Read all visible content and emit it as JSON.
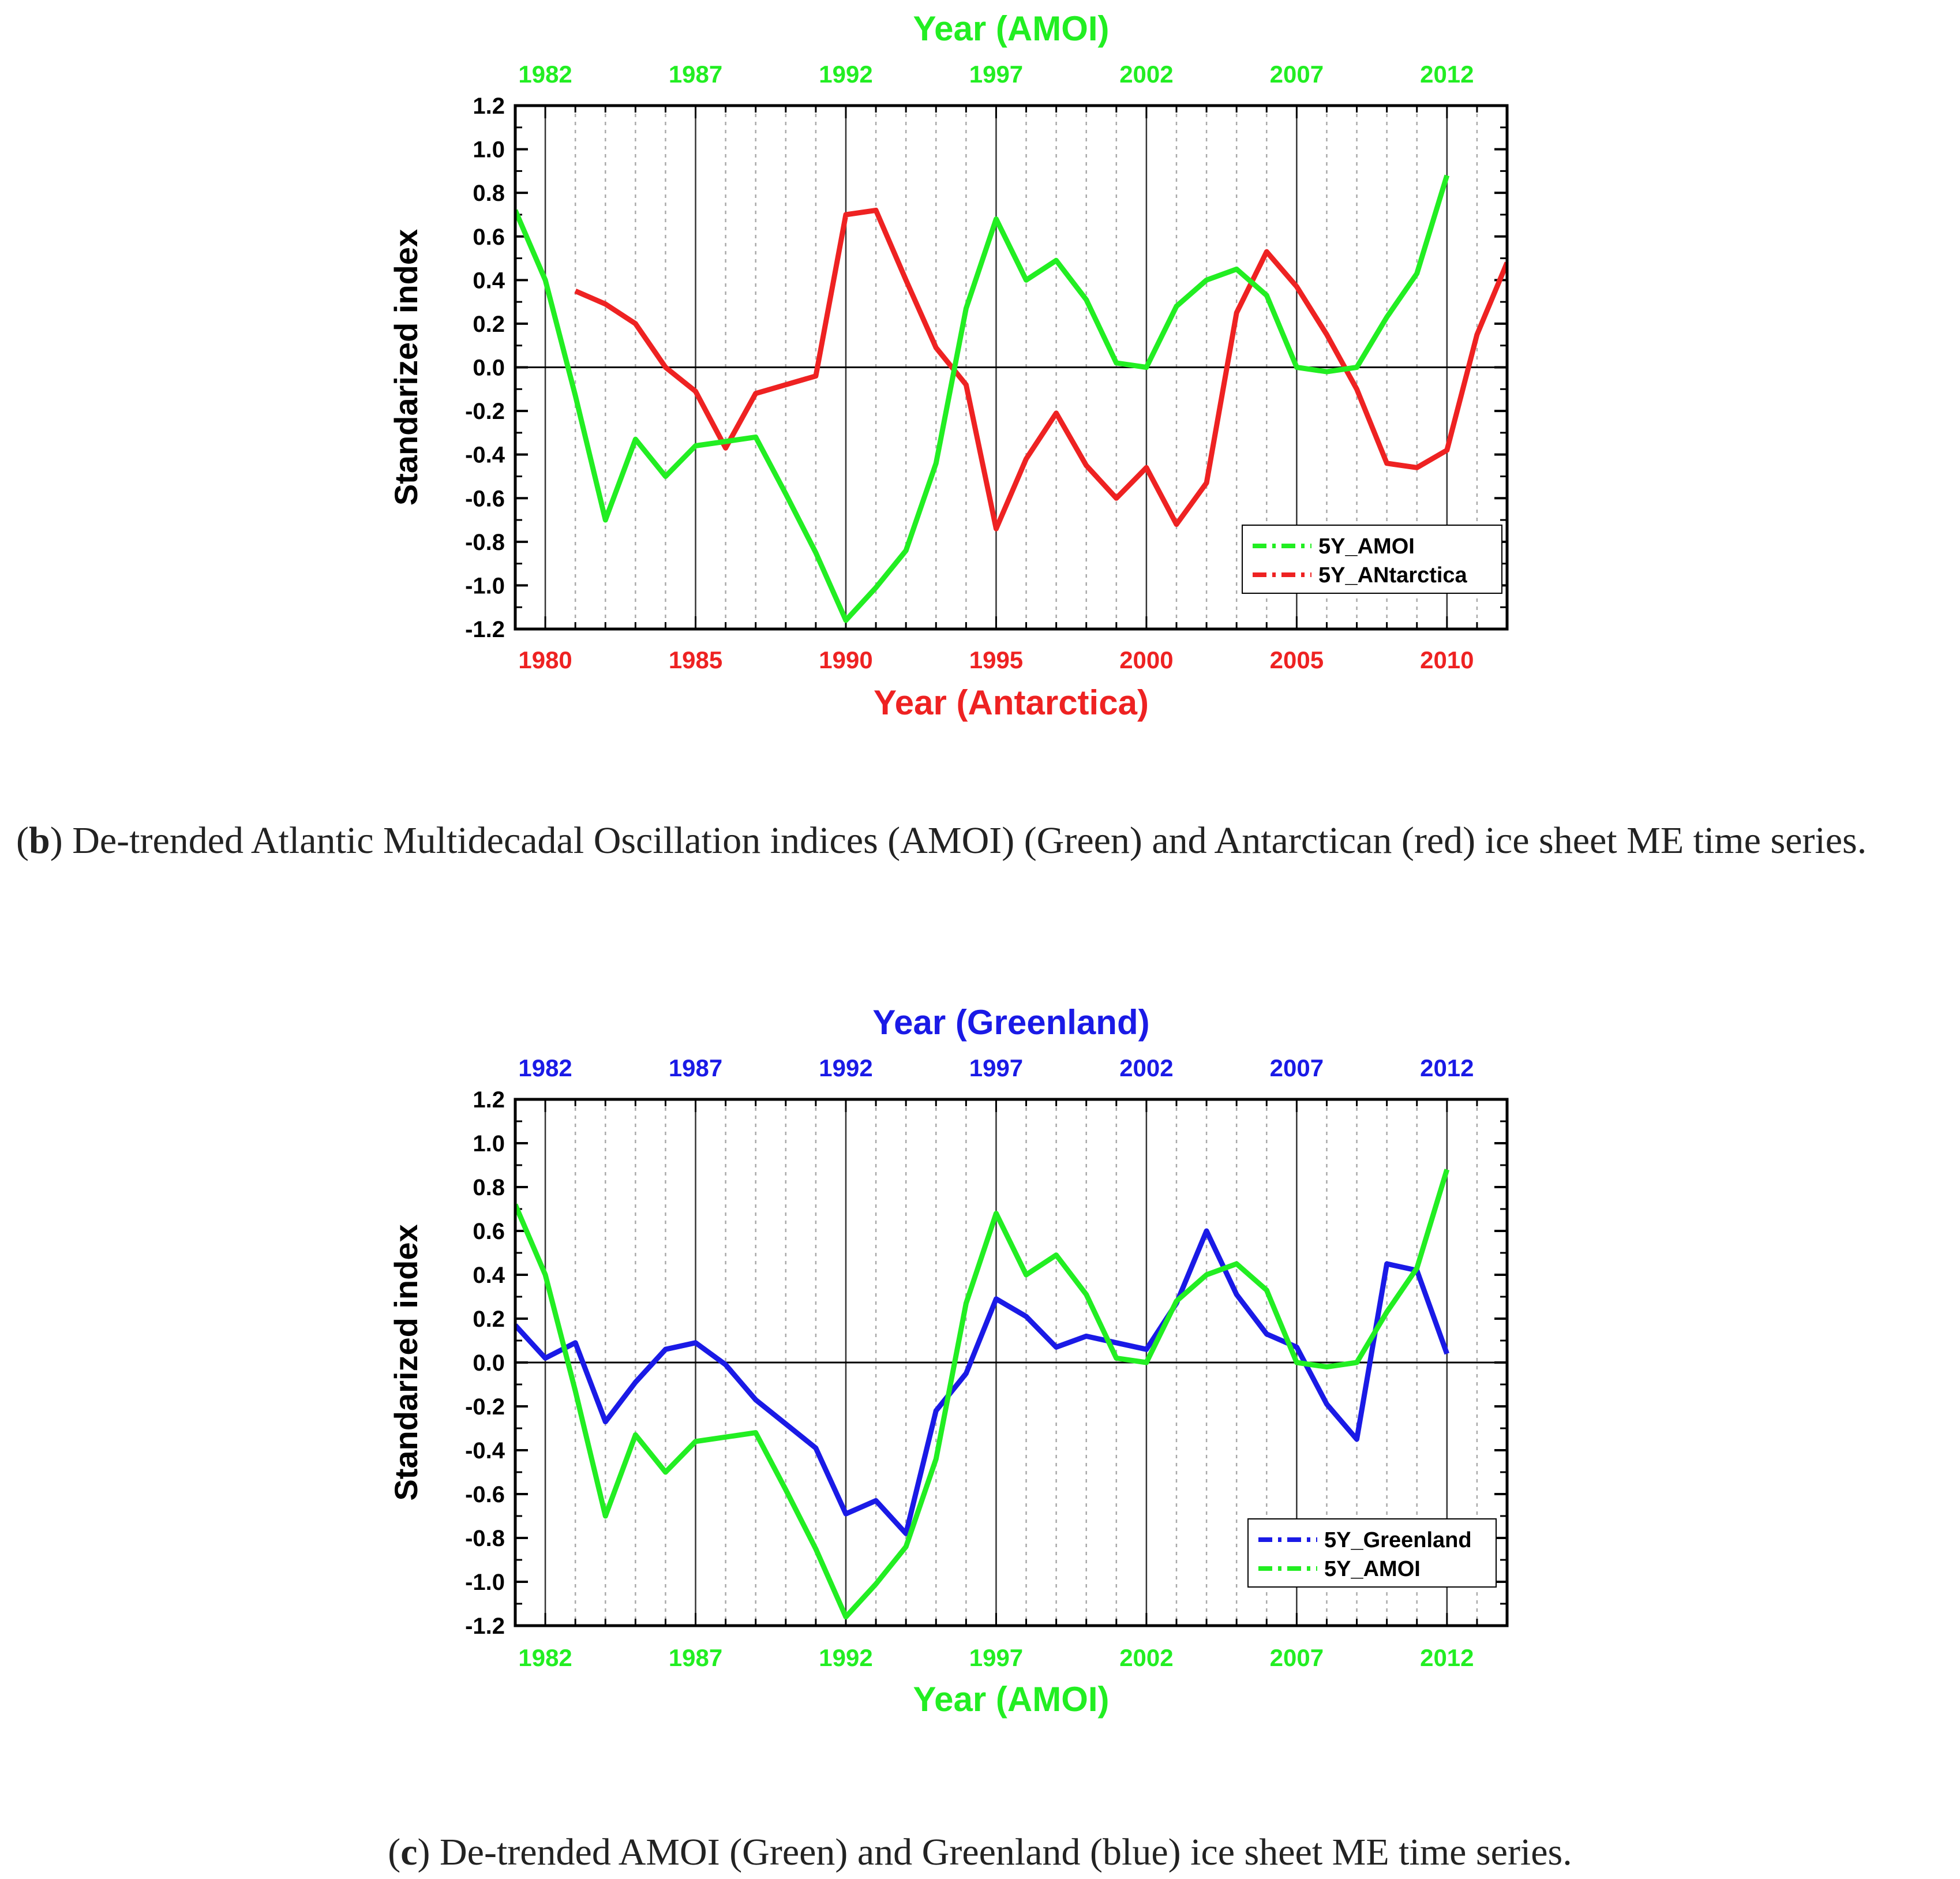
{
  "colors": {
    "green": "#22ee22",
    "red": "#ee2222",
    "blue": "#1a1ae6",
    "axis": "#000000"
  },
  "captions": {
    "b": {
      "letter": "b",
      "text": "De-trended Atlantic Multidecadal Oscillation indices (AMOI) (Green) and Antarctican (red) ice sheet ME time series."
    },
    "c": {
      "letter": "c",
      "text": "De-trended AMOI (Green) and Greenland (blue) ice sheet ME time series."
    }
  },
  "chart_data": [
    {
      "type": "line",
      "id": "b",
      "ylabel": "Standarized index",
      "ylim": [
        -1.2,
        1.2
      ],
      "yticks": [
        "-1.2",
        "-1.0",
        "-0.8",
        "-0.6",
        "-0.4",
        "-0.2",
        "0.0",
        "0.2",
        "0.4",
        "0.6",
        "0.8",
        "1.0",
        "1.2"
      ],
      "bottom_axis": {
        "label": "Year (Antarctica)",
        "color": "#ee2222",
        "range": [
          1979,
          2012
        ],
        "ticks": [
          "1980",
          "1985",
          "1990",
          "1995",
          "2000",
          "2005",
          "2010"
        ]
      },
      "top_axis": {
        "label": "Year (AMOI)",
        "color": "#22ee22",
        "range": [
          1981,
          2014
        ],
        "ticks": [
          "1982",
          "1987",
          "1992",
          "1997",
          "2002",
          "2007",
          "2012"
        ]
      },
      "legend": {
        "position": "bottom-right",
        "entries": [
          "5Y_AMOI",
          "5Y_ANtarctica"
        ]
      },
      "series": [
        {
          "name": "5Y_ANtarctica",
          "color": "#ee2222",
          "axis": "bottom",
          "x": [
            1981,
            1982,
            1983,
            1984,
            1985,
            1986,
            1987,
            1988,
            1989,
            1990,
            1991,
            1992,
            1993,
            1994,
            1995,
            1996,
            1997,
            1998,
            1999,
            2000,
            2001,
            2002,
            2003,
            2004,
            2005,
            2006,
            2007,
            2008,
            2009,
            2010,
            2011,
            2012
          ],
          "y": [
            0.35,
            0.29,
            0.2,
            0.0,
            -0.11,
            -0.37,
            -0.12,
            -0.08,
            -0.04,
            0.7,
            0.72,
            0.4,
            0.09,
            -0.08,
            -0.74,
            -0.42,
            -0.21,
            -0.45,
            -0.6,
            -0.46,
            -0.72,
            -0.53,
            0.25,
            0.53,
            0.37,
            0.15,
            -0.1,
            -0.44,
            -0.46,
            -0.38,
            0.15,
            0.48
          ]
        },
        {
          "name": "5Y_AMOI",
          "color": "#22ee22",
          "axis": "top",
          "x": [
            1981,
            1982,
            1983,
            1984,
            1985,
            1986,
            1987,
            1988,
            1989,
            1990,
            1991,
            1992,
            1993,
            1994,
            1995,
            1996,
            1997,
            1998,
            1999,
            2000,
            2001,
            2002,
            2003,
            2004,
            2005,
            2006,
            2007,
            2008,
            2009,
            2010,
            2011,
            2012
          ],
          "y": [
            0.72,
            0.4,
            -0.13,
            -0.7,
            -0.33,
            -0.5,
            -0.36,
            -0.34,
            -0.32,
            -0.58,
            -0.85,
            -1.16,
            -1.01,
            -0.84,
            -0.44,
            0.27,
            0.68,
            0.4,
            0.49,
            0.31,
            0.02,
            0.0,
            0.28,
            0.4,
            0.45,
            0.33,
            0.0,
            -0.02,
            0.0,
            0.23,
            0.43,
            0.88
          ]
        }
      ]
    },
    {
      "type": "line",
      "id": "c",
      "ylabel": "Standarized index",
      "ylim": [
        -1.2,
        1.2
      ],
      "yticks": [
        "-1.2",
        "-1.0",
        "-0.8",
        "-0.6",
        "-0.4",
        "-0.2",
        "0.0",
        "0.2",
        "0.4",
        "0.6",
        "0.8",
        "1.0",
        "1.2"
      ],
      "bottom_axis": {
        "label": "Year (AMOI)",
        "color": "#22ee22",
        "range": [
          1981,
          2014
        ],
        "ticks": [
          "1982",
          "1987",
          "1992",
          "1997",
          "2002",
          "2007",
          "2012"
        ]
      },
      "top_axis": {
        "label": "Year (Greenland)",
        "color": "#1a1ae6",
        "range": [
          1981,
          2014
        ],
        "ticks": [
          "1982",
          "1987",
          "1992",
          "1997",
          "2002",
          "2007",
          "2012"
        ]
      },
      "legend": {
        "position": "bottom-right",
        "entries": [
          "5Y_Greenland",
          "5Y_AMOI"
        ]
      },
      "series": [
        {
          "name": "5Y_Greenland",
          "color": "#1a1ae6",
          "axis": "top",
          "x": [
            1981,
            1982,
            1983,
            1984,
            1985,
            1986,
            1987,
            1988,
            1989,
            1990,
            1991,
            1992,
            1993,
            1994,
            1995,
            1996,
            1997,
            1998,
            1999,
            2000,
            2001,
            2002,
            2003,
            2004,
            2005,
            2006,
            2007,
            2008,
            2009,
            2010,
            2011,
            2012
          ],
          "y": [
            0.17,
            0.02,
            0.09,
            -0.27,
            -0.09,
            0.06,
            0.09,
            -0.01,
            -0.17,
            -0.28,
            -0.39,
            -0.69,
            -0.63,
            -0.78,
            -0.22,
            -0.05,
            0.29,
            0.21,
            0.07,
            0.12,
            0.09,
            0.06,
            0.27,
            0.6,
            0.31,
            0.13,
            0.07,
            -0.19,
            -0.35,
            0.45,
            0.42,
            0.04
          ]
        },
        {
          "name": "5Y_AMOI",
          "color": "#22ee22",
          "axis": "bottom",
          "x": [
            1981,
            1982,
            1983,
            1984,
            1985,
            1986,
            1987,
            1988,
            1989,
            1990,
            1991,
            1992,
            1993,
            1994,
            1995,
            1996,
            1997,
            1998,
            1999,
            2000,
            2001,
            2002,
            2003,
            2004,
            2005,
            2006,
            2007,
            2008,
            2009,
            2010,
            2011,
            2012
          ],
          "y": [
            0.72,
            0.4,
            -0.13,
            -0.7,
            -0.33,
            -0.5,
            -0.36,
            -0.34,
            -0.32,
            -0.58,
            -0.85,
            -1.16,
            -1.01,
            -0.84,
            -0.44,
            0.27,
            0.68,
            0.4,
            0.49,
            0.31,
            0.02,
            0.0,
            0.28,
            0.4,
            0.45,
            0.33,
            0.0,
            -0.02,
            0.0,
            0.23,
            0.43,
            0.88
          ]
        }
      ]
    }
  ]
}
